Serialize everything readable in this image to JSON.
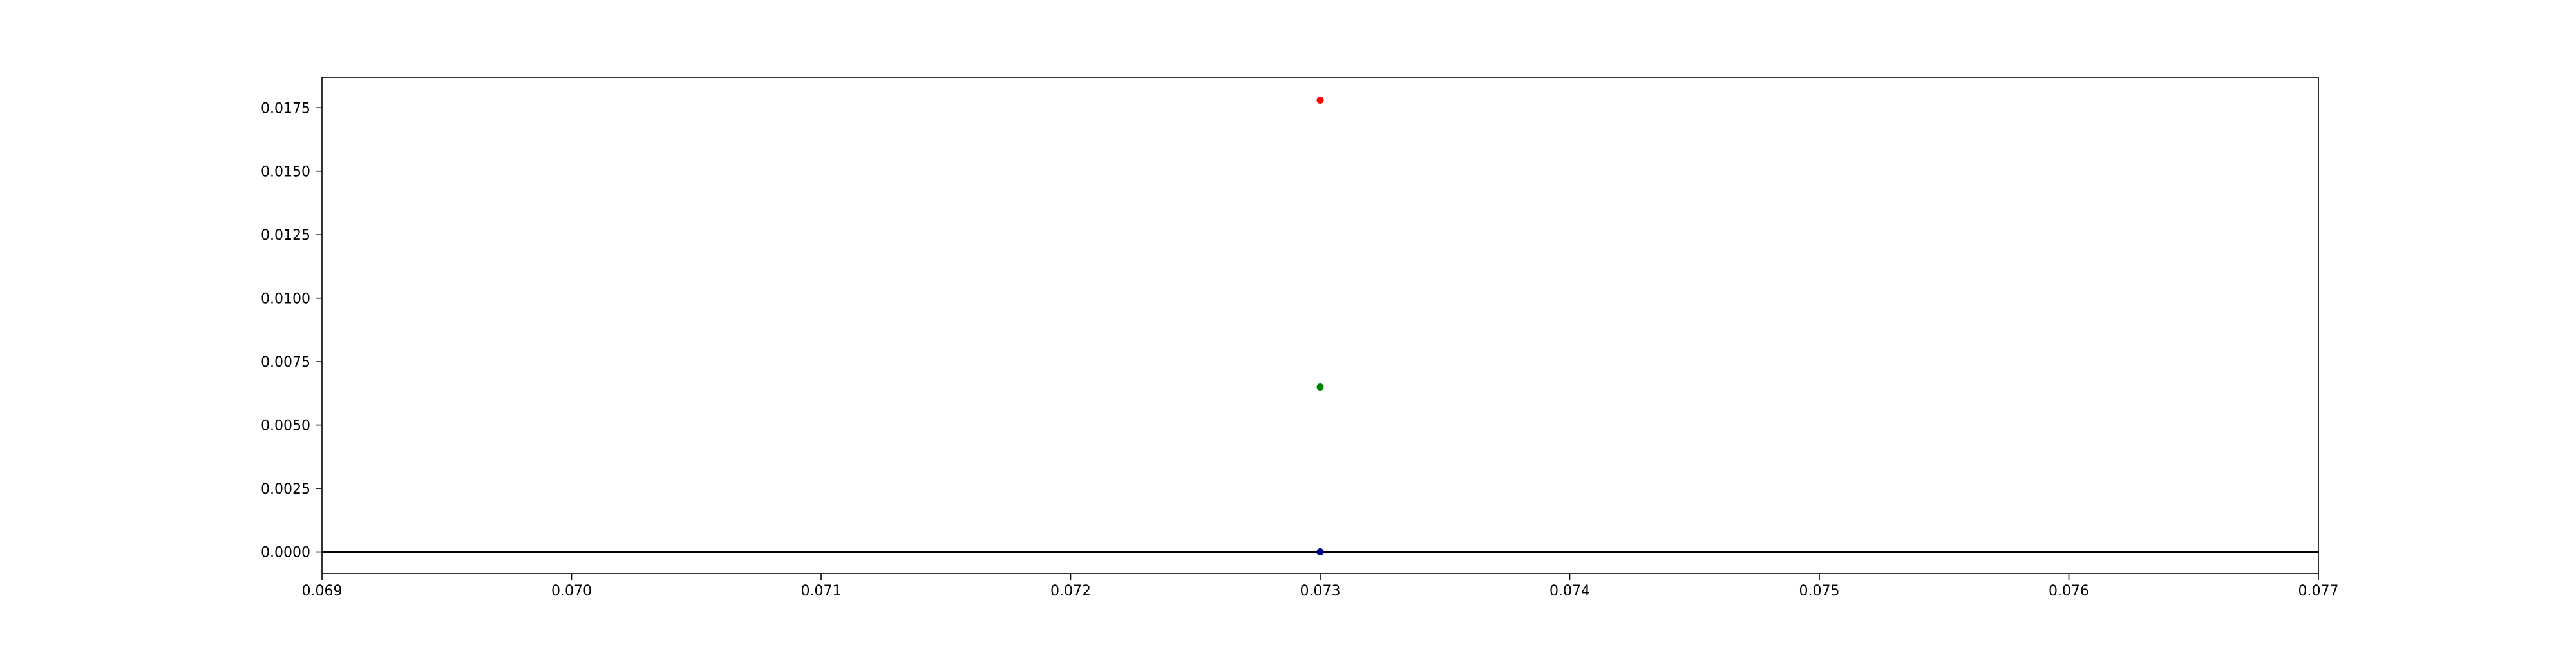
{
  "chart_data": {
    "type": "scatter",
    "title": "",
    "xlabel": "",
    "ylabel": "",
    "xlim": [
      0.069,
      0.077
    ],
    "ylim": [
      -0.00085,
      0.0187
    ],
    "x_ticks": [
      {
        "value": 0.069,
        "label": "0.069"
      },
      {
        "value": 0.07,
        "label": "0.070"
      },
      {
        "value": 0.071,
        "label": "0.071"
      },
      {
        "value": 0.072,
        "label": "0.072"
      },
      {
        "value": 0.073,
        "label": "0.073"
      },
      {
        "value": 0.074,
        "label": "0.074"
      },
      {
        "value": 0.075,
        "label": "0.075"
      },
      {
        "value": 0.076,
        "label": "0.076"
      },
      {
        "value": 0.077,
        "label": "0.077"
      }
    ],
    "y_ticks": [
      {
        "value": 0.0,
        "label": "0.0000"
      },
      {
        "value": 0.0025,
        "label": "0.0025"
      },
      {
        "value": 0.005,
        "label": "0.0050"
      },
      {
        "value": 0.0075,
        "label": "0.0075"
      },
      {
        "value": 0.01,
        "label": "0.0100"
      },
      {
        "value": 0.0125,
        "label": "0.0125"
      },
      {
        "value": 0.015,
        "label": "0.0150"
      },
      {
        "value": 0.0175,
        "label": "0.0175"
      }
    ],
    "reference_line": {
      "y": 0,
      "color": "#000000"
    },
    "grid": false,
    "legend": "none",
    "series": [
      {
        "color": "#ff0000",
        "points": [
          {
            "x": 0.073,
            "y": 0.0178
          }
        ]
      },
      {
        "color": "#008000",
        "points": [
          {
            "x": 0.073,
            "y": 0.0065
          }
        ]
      },
      {
        "color": "#00008b",
        "points": [
          {
            "x": 0.073,
            "y": 0.0
          }
        ]
      }
    ]
  }
}
